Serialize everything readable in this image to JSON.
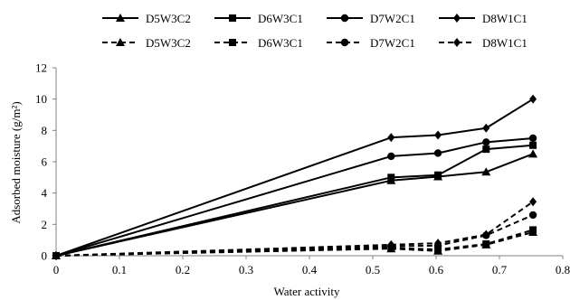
{
  "chart_data": {
    "type": "line",
    "title": "",
    "xlabel": "Water activity",
    "ylabel": "Adsorbed moisture (g/m²)",
    "xlim": [
      0,
      0.8
    ],
    "ylim": [
      0,
      12
    ],
    "xticks": [
      "0",
      "0.1",
      "0.2",
      "0.3",
      "0.4",
      "0.5",
      "0.6",
      "0.7",
      "0.8"
    ],
    "yticks": [
      "0",
      "2",
      "4",
      "6",
      "8",
      "10",
      "12"
    ],
    "grid": false,
    "legend_position": "top",
    "x": [
      0,
      0.529,
      0.603,
      0.679,
      0.753
    ],
    "series": [
      {
        "name": "D5W3C2",
        "style": "solid",
        "marker": "triangle",
        "values": [
          0,
          4.8,
          5.05,
          5.35,
          6.5
        ]
      },
      {
        "name": "D6W3C1",
        "style": "solid",
        "marker": "square",
        "values": [
          0,
          5.0,
          5.15,
          6.8,
          7.05
        ]
      },
      {
        "name": "D7W2C1",
        "style": "solid",
        "marker": "circle",
        "values": [
          0,
          6.35,
          6.55,
          7.25,
          7.5
        ]
      },
      {
        "name": "D8W1C1",
        "style": "solid",
        "marker": "diamond",
        "values": [
          0,
          7.55,
          7.7,
          8.15,
          10.0
        ]
      },
      {
        "name": "D5W3C2",
        "style": "dashed",
        "marker": "triangle",
        "values": [
          0,
          0.45,
          0.3,
          0.7,
          1.5
        ]
      },
      {
        "name": "D6W3C1",
        "style": "dashed",
        "marker": "square",
        "values": [
          0,
          0.5,
          0.4,
          0.75,
          1.65
        ]
      },
      {
        "name": "D7W2C1",
        "style": "dashed",
        "marker": "circle",
        "values": [
          0,
          0.6,
          0.65,
          1.3,
          2.6
        ]
      },
      {
        "name": "D8W1C1",
        "style": "dashed",
        "marker": "diamond",
        "values": [
          0,
          0.7,
          0.8,
          1.35,
          3.45
        ]
      }
    ],
    "colors": {
      "line": "#000000",
      "background": "#ffffff"
    }
  }
}
